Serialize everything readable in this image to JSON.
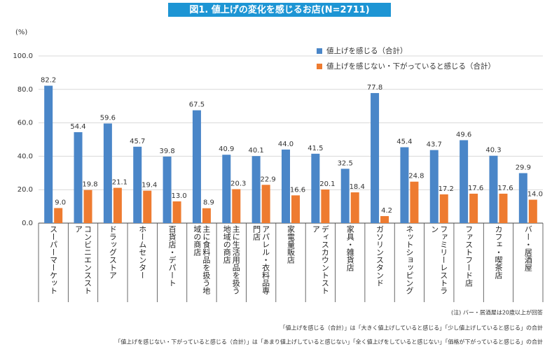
{
  "chart_data": {
    "type": "bar",
    "title": "図1. 値上げの変化を感じるお店(N=2711)",
    "y_label": "(%)",
    "categories": [
      "スーパーマーケット",
      "コンビニエンスストア",
      "ドラッグストア",
      "ホームセンター",
      "百貨店・デパート",
      "主に食料品を扱う地域の商店",
      "主に生活用品を扱う地域の商店",
      "アパレル・衣料品専門店",
      "家電量販店",
      "ディスカウントストア",
      "家具・雑貨店",
      "ガソリンスタンド",
      "ネットショッピング",
      "ファミリーレストラン",
      "ファストフード店",
      "カフェ・喫茶店",
      "バー・居酒屋"
    ],
    "series": [
      {
        "name": "値上げを感じる（合計）",
        "color": "#4a86c8",
        "values": [
          82.2,
          54.4,
          59.6,
          45.7,
          39.8,
          67.5,
          40.9,
          40.1,
          44.0,
          41.5,
          32.5,
          77.8,
          45.4,
          43.7,
          49.6,
          40.3,
          29.9
        ],
        "value_labels": [
          "82.2",
          "54.4",
          "59.6",
          "45.7",
          "39.8",
          "67.5",
          "40.9",
          "40.1",
          "44.0",
          "41.5",
          "32.5",
          "77.8",
          "45.4",
          "43.7",
          "49.6",
          "40.3",
          "29.9"
        ]
      },
      {
        "name": "値上げを感じない・下がっていると感じる（合計）",
        "color": "#ee7b30",
        "values": [
          9.0,
          19.8,
          21.1,
          19.4,
          13.0,
          8.9,
          20.3,
          22.9,
          16.6,
          20.1,
          18.4,
          4.2,
          24.8,
          17.2,
          17.6,
          17.6,
          14.0
        ],
        "value_labels": [
          "9.0",
          "19.8",
          "21.1",
          "19.4",
          "13.0",
          "8.9",
          "20.3",
          "22.9",
          "16.6",
          "20.1",
          "18.4",
          "4.2",
          "24.8",
          "17.2",
          "17.6",
          "17.6",
          "14.0"
        ]
      }
    ],
    "ylim": [
      0,
      100
    ],
    "yticks": [
      {
        "value": 0,
        "label": "0.0"
      },
      {
        "value": 20,
        "label": "20.0"
      },
      {
        "value": 40,
        "label": "40.0"
      },
      {
        "value": 60,
        "label": "60.0"
      },
      {
        "value": 80,
        "label": "80.0"
      },
      {
        "value": 100,
        "label": "100.0"
      }
    ],
    "grid": true,
    "legend": "upper right",
    "notes": [
      "(注) バー・居酒屋は20歳以上が回答",
      "「値上げを感じる（合計）」は「大きく値上げしていると感じる」「少し値上げしていると感じる」の合計",
      "「値上げを感じない・下がっていると感じる（合計）」は「あまり値上げしていると感じない」「全く値上げをしていると感じない」「価格が下がっていると感じる」の合計"
    ]
  }
}
